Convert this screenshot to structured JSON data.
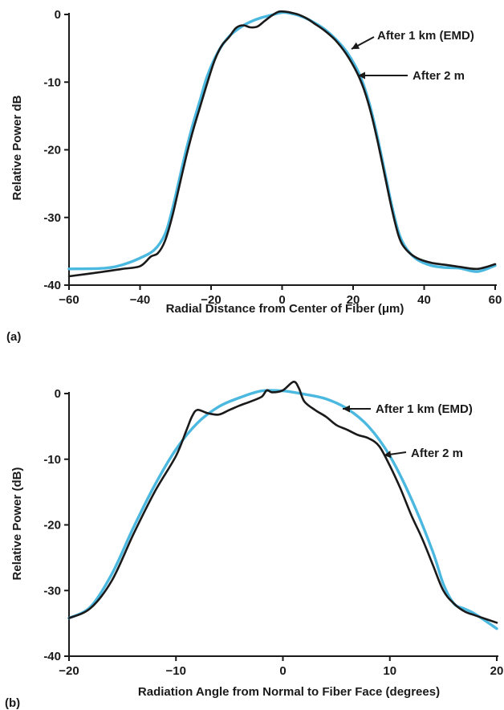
{
  "chart_data": [
    {
      "panel_label": "(a)",
      "type": "line",
      "title": "",
      "xlabel": "Radial Distance from Center of Fiber (μm)",
      "ylabel": "Relative Power dB",
      "xlim": [
        -60,
        60
      ],
      "ylim": [
        -40,
        0
      ],
      "xticks": [
        -60,
        -40,
        -20,
        0,
        20,
        40,
        60
      ],
      "yticks": [
        0,
        -10,
        -20,
        -30,
        -40
      ],
      "grid": false,
      "series": [
        {
          "color": "#4bb8e0",
          "x": [
            -60,
            -50,
            -45,
            -40,
            -36,
            -33,
            -31,
            -29,
            -27,
            -25,
            -23,
            -21,
            -18,
            -15,
            -12,
            -9,
            -6,
            -3,
            0,
            3,
            6,
            9,
            12,
            15,
            18,
            21,
            23,
            25,
            27,
            29,
            31,
            33,
            35,
            38,
            42,
            46,
            50,
            55,
            60
          ],
          "y": [
            -37.6,
            -37.5,
            -37.0,
            -36.0,
            -34.8,
            -32.5,
            -29.0,
            -24.5,
            -20.0,
            -16.0,
            -12.5,
            -9.0,
            -5.5,
            -3.3,
            -2.0,
            -1.1,
            -0.5,
            -0.1,
            0.3,
            0.1,
            -0.4,
            -1.2,
            -2.2,
            -3.6,
            -5.4,
            -8.0,
            -10.5,
            -14.0,
            -18.5,
            -23.5,
            -28.5,
            -32.5,
            -34.6,
            -36.2,
            -37.1,
            -37.4,
            -37.5,
            -38.0,
            -37.1
          ]
        },
        {
          "color": "#1a1a1a",
          "x": [
            -60,
            -50,
            -45,
            -40,
            -37,
            -35,
            -33,
            -31,
            -29,
            -27,
            -25,
            -23,
            -21,
            -19,
            -17,
            -15,
            -13,
            -11,
            -9,
            -7,
            -5,
            -3,
            -1,
            1,
            3,
            5,
            7,
            9,
            12,
            15,
            18,
            21,
            23,
            25,
            27,
            29,
            31,
            33,
            35,
            38,
            42,
            46,
            50,
            55,
            60
          ],
          "y": [
            -38.7,
            -38.0,
            -37.6,
            -37.2,
            -35.8,
            -35.3,
            -33.5,
            -30.0,
            -25.5,
            -21.0,
            -17.0,
            -13.5,
            -10.0,
            -6.8,
            -4.6,
            -3.4,
            -2.0,
            -1.6,
            -1.9,
            -1.8,
            -1.0,
            -0.2,
            0.4,
            0.4,
            0.2,
            -0.1,
            -0.6,
            -1.3,
            -2.4,
            -3.8,
            -5.8,
            -8.5,
            -11.0,
            -14.5,
            -19.0,
            -24.0,
            -29.0,
            -33.0,
            -34.8,
            -36.0,
            -36.7,
            -37.0,
            -37.3,
            -37.6,
            -36.9
          ]
        }
      ],
      "annotations": [
        "After 1 km (EMD)",
        "After 2 m"
      ]
    },
    {
      "panel_label": "(b)",
      "type": "line",
      "title": "",
      "xlabel": "Radiation Angle from Normal to Fiber Face (degrees)",
      "ylabel": "Relative Power (dB)",
      "xlim": [
        -20,
        20
      ],
      "ylim": [
        -40,
        0
      ],
      "xticks": [
        -20,
        -10,
        0,
        10,
        20
      ],
      "yticks": [
        0,
        -10,
        -20,
        -30,
        -40
      ],
      "grid": false,
      "series": [
        {
          "color": "#4bb8e0",
          "x": [
            -20,
            -18,
            -16,
            -14,
            -12,
            -10,
            -8,
            -6,
            -4,
            -2,
            0,
            2,
            4,
            6,
            8,
            10,
            12,
            14,
            15,
            16,
            17,
            18,
            20
          ],
          "y": [
            -34.2,
            -32.5,
            -27.5,
            -20.5,
            -14.0,
            -8.5,
            -4.5,
            -2.0,
            -0.6,
            0.4,
            0.4,
            -0.1,
            -0.8,
            -2.3,
            -5.0,
            -9.5,
            -16.0,
            -24.0,
            -29.0,
            -32.0,
            -32.8,
            -33.6,
            -35.8
          ]
        },
        {
          "color": "#1a1a1a",
          "x": [
            -20,
            -18,
            -16,
            -14,
            -12,
            -10,
            -9,
            -8.5,
            -8,
            -7,
            -6,
            -5,
            -4,
            -3,
            -2,
            -1.5,
            -1,
            0,
            1,
            1.5,
            2,
            3,
            4,
            5,
            6,
            7,
            8,
            9,
            10,
            11,
            12,
            13,
            14,
            15,
            16,
            17,
            18,
            20
          ],
          "y": [
            -34.2,
            -32.7,
            -28.5,
            -21.5,
            -15.0,
            -9.5,
            -5.5,
            -3.5,
            -2.5,
            -3.0,
            -3.2,
            -2.5,
            -1.8,
            -1.2,
            -0.5,
            0.5,
            0.2,
            0.5,
            1.8,
            0.8,
            -1.2,
            -2.5,
            -3.5,
            -4.8,
            -5.5,
            -6.3,
            -6.8,
            -8.0,
            -11.0,
            -14.5,
            -18.5,
            -22.0,
            -26.0,
            -30.0,
            -32.0,
            -33.2,
            -33.8,
            -34.9
          ]
        }
      ],
      "annotations": [
        "After 1 km (EMD)",
        "After 2 m"
      ]
    }
  ]
}
